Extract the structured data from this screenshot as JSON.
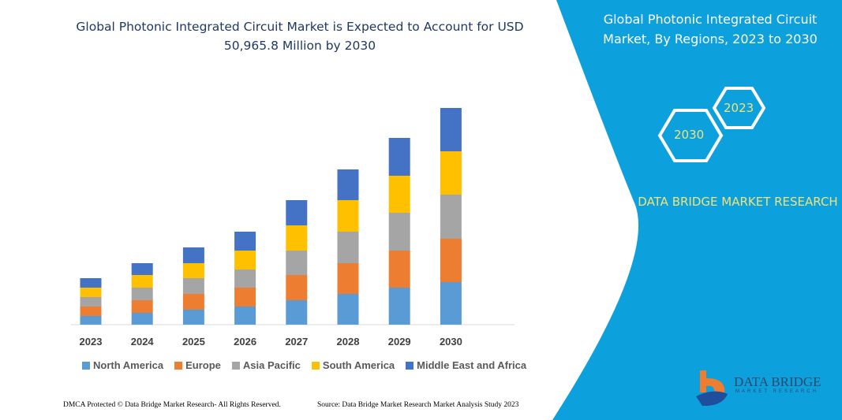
{
  "title": "Global Photonic Integrated Circuit Market is Expected to Account for USD 50,965.8 Million by 2030",
  "side_panel": {
    "title": "Global Photonic Integrated Circuit Market, By Regions, 2023 to 2030",
    "hex_start": "2023",
    "hex_end": "2030",
    "brand": "DATA BRIDGE MARKET RESEARCH",
    "logo_text": "DATA BRIDGE",
    "logo_sub": "MARKET RESEARCH",
    "panel_color": "#0ca0dc"
  },
  "footer": {
    "left": "DMCA Protected © Data Bridge Market Research- All Rights Reserved.",
    "right": "Source: Data Bridge Market Research Market Analysis Study 2023"
  },
  "chart_data": {
    "type": "bar",
    "stacked": true,
    "title": "Global Photonic Integrated Circuit Market is Expected to Account for USD 50,965.8 Million by 2030",
    "xlabel": "",
    "ylabel": "",
    "grid": false,
    "legend_position": "bottom",
    "categories": [
      "2023",
      "2024",
      "2025",
      "2026",
      "2027",
      "2028",
      "2029",
      "2030"
    ],
    "series": [
      {
        "name": "North America",
        "color": "#5b9bd5",
        "values": [
          11,
          15,
          19,
          23,
          31,
          39,
          47,
          54
        ]
      },
      {
        "name": "Europe",
        "color": "#ed7d31",
        "values": [
          12,
          16,
          20,
          24,
          32,
          39,
          47,
          55
        ]
      },
      {
        "name": "Asia Pacific",
        "color": "#a5a5a5",
        "values": [
          12,
          16,
          20,
          23,
          31,
          40,
          48,
          56
        ]
      },
      {
        "name": "South America",
        "color": "#ffc000",
        "values": [
          12,
          16,
          19,
          24,
          32,
          40,
          47,
          55
        ]
      },
      {
        "name": "Middle East and Africa",
        "color": "#4472c4",
        "values": [
          12,
          15,
          20,
          24,
          32,
          39,
          48,
          55
        ]
      }
    ]
  }
}
